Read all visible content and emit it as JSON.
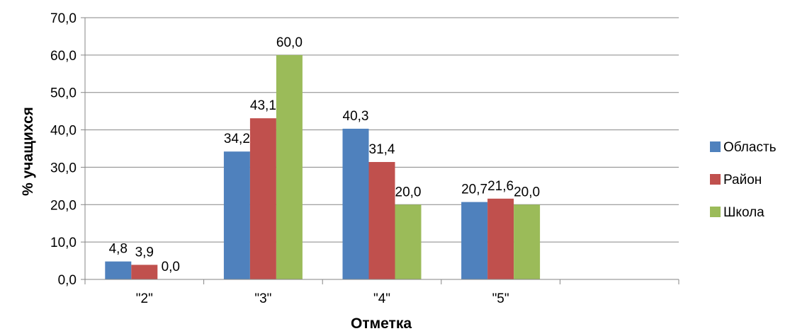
{
  "chart_data": {
    "type": "bar",
    "categories": [
      "\"2\"",
      "\"3\"",
      "\"4\"",
      "\"5\"",
      ""
    ],
    "series": [
      {
        "name": "Область",
        "values": [
          4.8,
          34.2,
          40.3,
          20.7,
          null
        ],
        "labels": [
          "4,8",
          "34,2",
          "40,3",
          "20,7",
          ""
        ],
        "color": "#4f81bd"
      },
      {
        "name": "Район",
        "values": [
          3.9,
          43.1,
          31.4,
          21.6,
          null
        ],
        "labels": [
          "3,9",
          "43,1",
          "31,4",
          "21,6",
          ""
        ],
        "color": "#c0504d"
      },
      {
        "name": "Школа",
        "values": [
          0.0,
          60.0,
          20.0,
          20.0,
          null
        ],
        "labels": [
          "0,0",
          "60,0",
          "20,0",
          "20,0",
          ""
        ],
        "color": "#9bbb59"
      }
    ],
    "y_ticks": [
      "0,0",
      "10,0",
      "20,0",
      "30,0",
      "40,0",
      "50,0",
      "60,0",
      "70,0"
    ],
    "ylim": [
      0,
      70
    ],
    "xlabel": "Отметка",
    "ylabel": "% учащихся",
    "title": "",
    "grid": true,
    "legend_position": "right"
  }
}
